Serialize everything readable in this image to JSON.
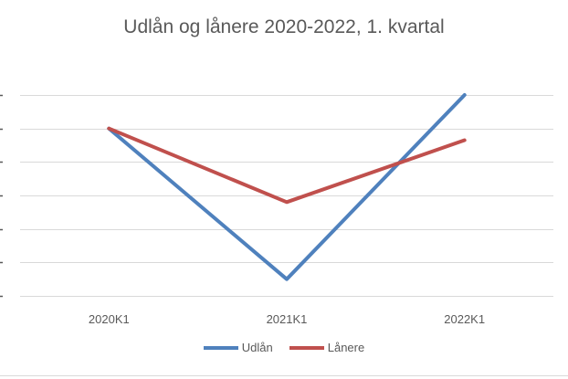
{
  "chart_data": {
    "type": "line",
    "title": "Udlån og lånere 2020-2022, 1. kvartal",
    "categories": [
      "2020K1",
      "2021K1",
      "2022K1"
    ],
    "series": [
      {
        "name": "Udlån",
        "values": [
          100,
          55,
          110
        ],
        "color": "#4f81bd"
      },
      {
        "name": "Lånere",
        "values": [
          100,
          78,
          96.5
        ],
        "color": "#c0504d"
      }
    ],
    "xlabel": "",
    "ylabel": "",
    "ylim": [
      50,
      110
    ],
    "ytick_step": 10,
    "grid": true,
    "legend": "bottom"
  }
}
